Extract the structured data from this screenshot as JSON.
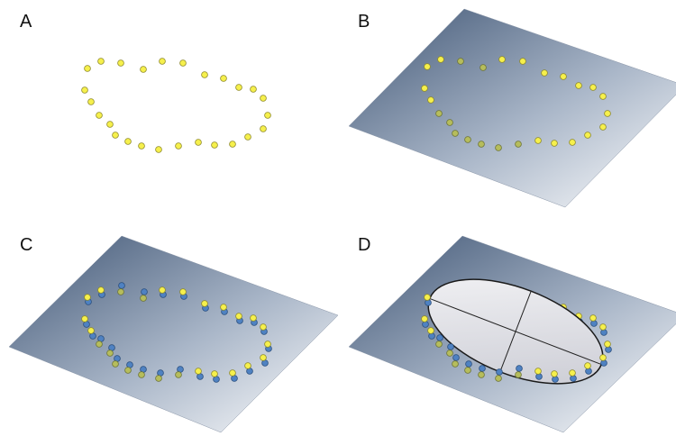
{
  "panels": [
    {
      "label": "A"
    },
    {
      "label": "B"
    },
    {
      "label": "C"
    },
    {
      "label": "D"
    }
  ]
}
